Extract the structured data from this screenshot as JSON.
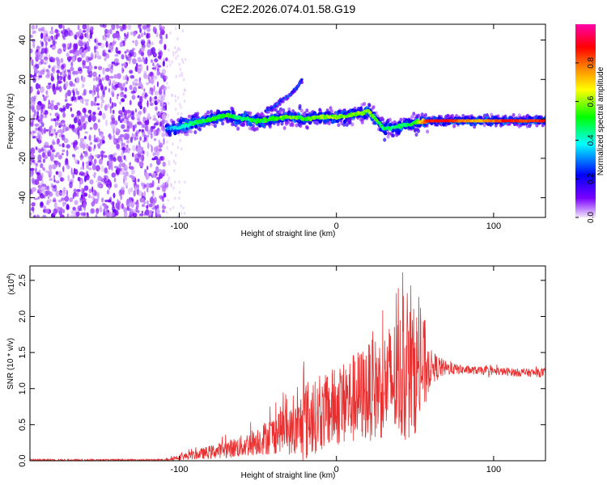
{
  "chart_data": [
    {
      "type": "heatmap",
      "title": "C2E2.2026.074.01.58.G19",
      "xlabel": "Height of straight line (km)",
      "ylabel": "Frequency (Hz)",
      "xlim": [
        -195,
        133
      ],
      "ylim": [
        -50,
        48
      ],
      "xticks": [
        -100,
        0,
        100
      ],
      "xticklabels": [
        "-100",
        "0",
        "100"
      ],
      "yticks": [
        40,
        20,
        0,
        -20,
        -40
      ],
      "yticklabels": [
        "40",
        "20",
        "0",
        "-20",
        "-40"
      ],
      "noise_region_end_km": -108,
      "ridge": {
        "description": "frequency of strongest spectral component versus height",
        "x": [
          -108,
          -100,
          -90,
          -80,
          -70,
          -60,
          -50,
          -40,
          -30,
          -20,
          -10,
          0,
          10,
          20,
          25,
          30,
          40,
          50,
          58,
          70,
          80,
          90,
          100,
          110,
          120,
          133
        ],
        "freq": [
          -5,
          -4,
          -2,
          0,
          2,
          0,
          -1,
          0,
          1,
          0,
          1,
          1,
          2,
          4,
          0,
          -5,
          -4,
          -2,
          -1,
          -1,
          -1,
          -1,
          -1,
          -1,
          -1,
          -1
        ],
        "amplitude": [
          0.3,
          0.4,
          0.45,
          0.5,
          0.5,
          0.45,
          0.5,
          0.5,
          0.55,
          0.5,
          0.55,
          0.55,
          0.55,
          0.55,
          0.5,
          0.45,
          0.45,
          0.5,
          0.85,
          0.9,
          0.75,
          0.7,
          0.75,
          0.9,
          0.8,
          0.85
        ]
      },
      "secondary_ridge": {
        "x": [
          -45,
          -40,
          -35,
          -30,
          -25,
          -22
        ],
        "freq": [
          4,
          6,
          9,
          12,
          16,
          20
        ]
      },
      "colorbar": {
        "label": "Normalized spectral amplitude",
        "range": [
          0,
          1
        ],
        "ticks": [
          0.0,
          0.2,
          0.4,
          0.6,
          0.8
        ],
        "ticklabels": [
          "0.0",
          "0.2",
          "0.4",
          "0.6",
          "0.8"
        ],
        "colors": [
          "#f2e6ff",
          "#7b00ff",
          "#0000ff",
          "#00ffff",
          "#00ff00",
          "#ffff00",
          "#ff7f00",
          "#ff0000",
          "#ff00aa"
        ]
      }
    },
    {
      "type": "line",
      "xlabel": "Height of straight line (km)",
      "ylabel": "SNR (10 * v/v)",
      "scale_label_main": "(x10",
      "scale_label_exp": "4",
      "scale_label_close": ")",
      "xlim": [
        -195,
        133
      ],
      "ylim": [
        0,
        2.7
      ],
      "xticks": [
        -100,
        0,
        100
      ],
      "xticklabels": [
        "-100",
        "0",
        "100"
      ],
      "yticks": [
        0.0,
        0.5,
        1.0,
        1.5,
        2.0,
        2.5
      ],
      "yticklabels": [
        "0.0",
        "0.5",
        "1.0",
        "1.5",
        "2.0",
        "2.5"
      ],
      "color": "#e83030",
      "envelope": {
        "x": [
          -195,
          -110,
          -100,
          -90,
          -80,
          -70,
          -60,
          -50,
          -40,
          -35,
          -30,
          -25,
          -20,
          -15,
          -10,
          -5,
          0,
          10,
          20,
          30,
          40,
          45,
          50,
          55,
          60,
          70,
          80,
          90,
          100,
          110,
          120,
          133
        ],
        "base": [
          0.01,
          0.01,
          0.05,
          0.08,
          0.12,
          0.16,
          0.2,
          0.28,
          0.36,
          0.45,
          0.4,
          0.42,
          0.55,
          0.6,
          0.62,
          0.7,
          0.75,
          0.85,
          0.95,
          1.05,
          1.15,
          1.2,
          1.25,
          1.3,
          1.3,
          1.28,
          1.26,
          1.25,
          1.24,
          1.23,
          1.22,
          1.22
        ],
        "spread": [
          0.02,
          0.02,
          0.05,
          0.08,
          0.12,
          0.15,
          0.2,
          0.25,
          0.35,
          0.4,
          0.4,
          0.5,
          0.75,
          0.65,
          0.6,
          0.7,
          0.7,
          0.8,
          0.85,
          0.95,
          1.15,
          1.2,
          1.1,
          0.95,
          0.3,
          0.12,
          0.08,
          0.07,
          0.07,
          0.07,
          0.07,
          0.08
        ],
        "peak": [
          0.02,
          0.02,
          0.12,
          0.2,
          0.33,
          0.38,
          0.55,
          0.62,
          0.8,
          0.95,
          0.97,
          1.05,
          1.55,
          1.2,
          1.2,
          1.35,
          1.3,
          1.55,
          1.8,
          2.1,
          2.55,
          2.7,
          2.45,
          2.1,
          1.55,
          1.45,
          1.38,
          1.36,
          1.35,
          1.34,
          1.34,
          1.35
        ]
      }
    }
  ]
}
